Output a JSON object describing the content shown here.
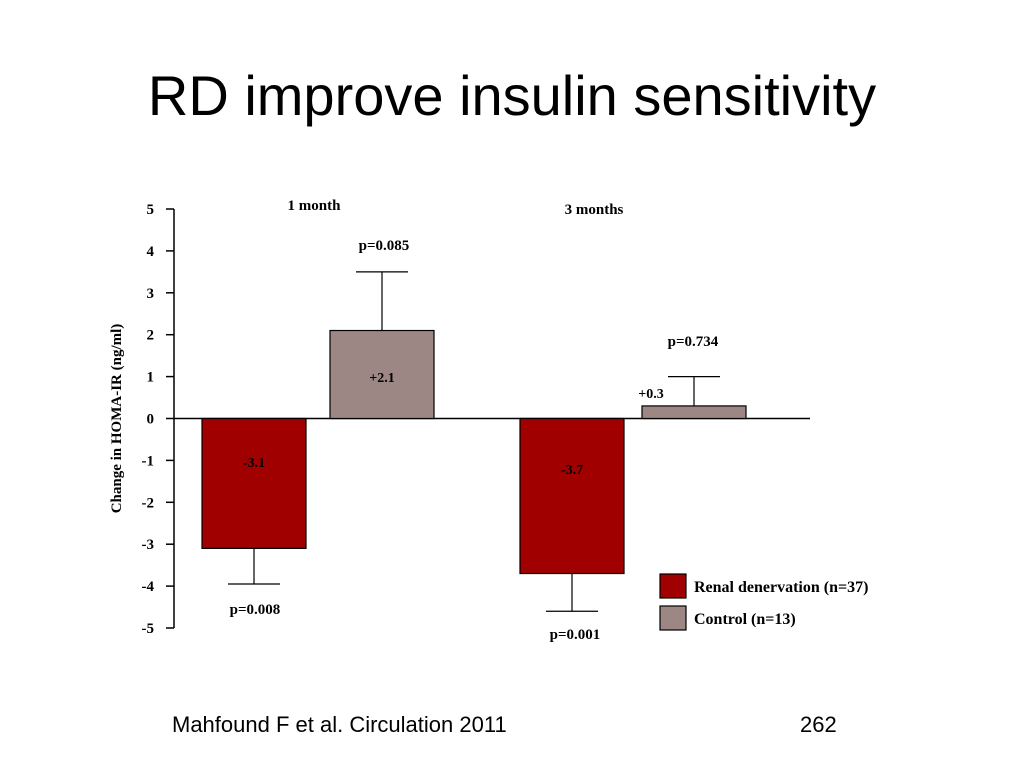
{
  "slide": {
    "title": "RD improve insulin sensitivity",
    "citation": "Mahfound F et al. Circulation 2011",
    "page_number": "262"
  },
  "chart_data": {
    "type": "bar",
    "ylabel": "Change in HOMA-IR (ng/ml)",
    "ylim": [
      -5,
      5
    ],
    "yticks": [
      "5",
      "4",
      "3",
      "2",
      "1",
      "0",
      "-1",
      "-2",
      "-3",
      "-4",
      "-5"
    ],
    "categories": [
      "1 month",
      "3 months"
    ],
    "series": [
      {
        "name": "Renal denervation (n=37)",
        "color": "#a00000",
        "values": [
          -3.1,
          -3.7
        ],
        "errors": [
          0.85,
          0.9
        ],
        "labels": [
          "-3.1",
          "-3.7"
        ]
      },
      {
        "name": "Control (n=13)",
        "color": "#9c8784",
        "values": [
          2.1,
          0.3
        ],
        "errors": [
          1.4,
          0.7
        ],
        "labels": [
          "+2.1",
          "+0.3"
        ]
      }
    ],
    "p_values": [
      {
        "text": "p=0.008"
      },
      {
        "text": "p=0.085"
      },
      {
        "text": "p=0.001"
      },
      {
        "text": "p=0.734"
      }
    ],
    "legend_position": "bottom-right"
  }
}
